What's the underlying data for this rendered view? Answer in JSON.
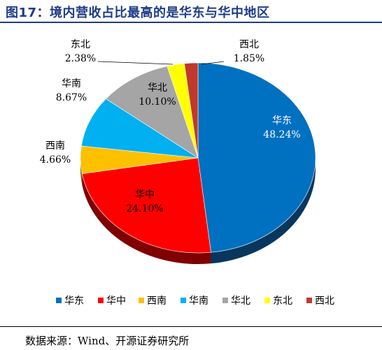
{
  "figure": {
    "title": "图17：境内营收占比最高的是华东与华中地区",
    "source": "数据来源：Wind、开源证券研究所"
  },
  "chart_data": {
    "type": "pie",
    "categories": [
      "华东",
      "华中",
      "西南",
      "华南",
      "华北",
      "东北",
      "西北"
    ],
    "values": [
      48.24,
      24.1,
      4.66,
      8.67,
      10.1,
      2.38,
      1.85
    ],
    "value_labels": [
      "48.24%",
      "24.10%",
      "4.66%",
      "8.67%",
      "10.10%",
      "2.38%",
      "1.85%"
    ],
    "colors": [
      "#0070c0",
      "#ff0000",
      "#ffc000",
      "#00b0f0",
      "#a5a5a5",
      "#ffff00",
      "#c0392b"
    ],
    "side_colors": [
      "#08375e",
      "#7f0000",
      "#806000",
      "#005878",
      "#525252",
      "#808000",
      "#602010"
    ],
    "label_colors": [
      "#ffffff",
      "#000000",
      "#000000",
      "#000000",
      "#000000",
      "#000000",
      "#000000"
    ],
    "legend_position": "bottom",
    "style": "3d"
  }
}
